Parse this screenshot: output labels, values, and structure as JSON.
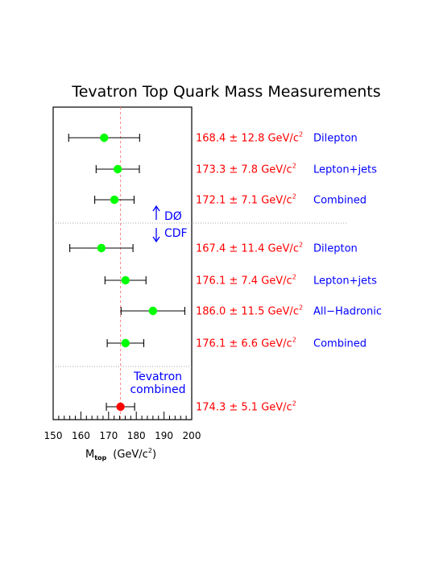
{
  "chart_data": {
    "type": "scatter",
    "title": "Tevatron Top Quark Mass Measurements",
    "xlabel_main": "M",
    "xlabel_sub": "top",
    "xlabel_unit": "(GeV/c",
    "xlabel_exp": "2",
    "xlabel_close": ")",
    "xlim": [
      150,
      200
    ],
    "xticks": [
      "150",
      "160",
      "170",
      "180",
      "190",
      "200"
    ],
    "reference_value": 174.3,
    "unit": "GeV/c",
    "unit_exp": "2",
    "measurements": [
      {
        "central": 168.4,
        "value_text": "168.4",
        "pm": "±",
        "error_text": "12.8",
        "lo": 155.6,
        "hi": 181.2,
        "label": "Dilepton",
        "color": "#00ff00"
      },
      {
        "central": 173.3,
        "value_text": "173.3",
        "pm": "±",
        "error_text": "7.8",
        "lo": 165.5,
        "hi": 181.1,
        "label": "Lepton+jets",
        "color": "#00ff00"
      },
      {
        "central": 172.1,
        "value_text": "172.1",
        "pm": "±",
        "error_text": "7.1",
        "lo": 165.0,
        "hi": 179.2,
        "label": "Combined",
        "color": "#00ff00"
      },
      {
        "central": 167.4,
        "value_text": "167.4",
        "pm": "±",
        "error_text": "11.4",
        "lo": 156.0,
        "hi": 178.8,
        "label": "Dilepton",
        "color": "#00ff00"
      },
      {
        "central": 176.1,
        "value_text": "176.1",
        "pm": "±",
        "error_text": "7.4",
        "lo": 168.7,
        "hi": 183.5,
        "label": "Lepton+jets",
        "color": "#00ff00"
      },
      {
        "central": 186.0,
        "value_text": "186.0",
        "pm": "±",
        "error_text": "11.5",
        "lo": 174.5,
        "hi": 197.5,
        "label": "All−Hadronic",
        "color": "#00ff00"
      },
      {
        "central": 176.1,
        "value_text": "176.1",
        "pm": "±",
        "error_text": "6.6",
        "lo": 169.5,
        "hi": 182.7,
        "label": "Combined",
        "color": "#00ff00"
      },
      {
        "central": 174.3,
        "value_text": "174.3",
        "pm": "±",
        "error_text": "5.1",
        "lo": 169.2,
        "hi": 179.4,
        "label": "",
        "color": "#ff0000"
      }
    ],
    "annotations": {
      "d0": "DØ",
      "cdf": "CDF",
      "tev_line1": "Tevatron",
      "tev_line2": "combined"
    },
    "colors": {
      "values": "#ff0000",
      "labels": "#0000ff",
      "reference_line": "#ff8080",
      "separator": "#888888"
    }
  }
}
